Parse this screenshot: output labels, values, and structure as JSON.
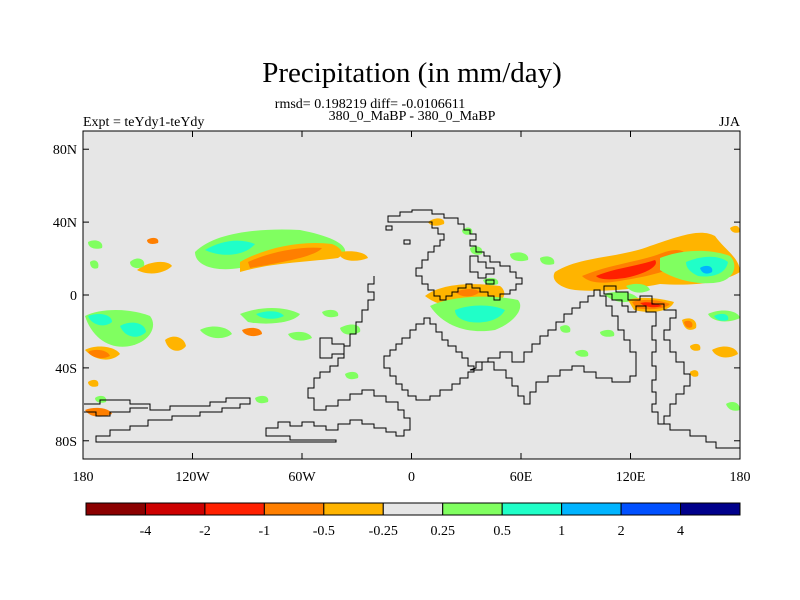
{
  "title": "Precipitation (in mm/day)",
  "stats_line": "rmsd= 0.198219 diff= -0.0106611",
  "case_line": "380_0_MaBP - 380_0_MaBP",
  "left_label": "Expt = teYdy1-teYdy",
  "right_label": "JJA",
  "map": {
    "lon_range": [
      -180,
      180
    ],
    "lat_range": [
      -90,
      90
    ],
    "background_color": "#e6e6e6",
    "coastline_color": "#000000"
  },
  "x_ticks": [
    {
      "value": -180,
      "label": "180"
    },
    {
      "value": -120,
      "label": "120W"
    },
    {
      "value": -60,
      "label": "60W"
    },
    {
      "value": 0,
      "label": "0"
    },
    {
      "value": 60,
      "label": "60E"
    },
    {
      "value": 120,
      "label": "120E"
    },
    {
      "value": 180,
      "label": "180"
    }
  ],
  "y_ticks": [
    {
      "value": 80,
      "label": "80N"
    },
    {
      "value": 40,
      "label": "40N"
    },
    {
      "value": 0,
      "label": "0"
    },
    {
      "value": -40,
      "label": "40S"
    },
    {
      "value": -80,
      "label": "80S"
    }
  ],
  "colorbar": {
    "colors": [
      "#8b0000",
      "#cd0000",
      "#ff2000",
      "#ff7f00",
      "#ffb400",
      "#e6e6e6",
      "#80ff60",
      "#20ffc8",
      "#00b4ff",
      "#0050ff",
      "#00008b"
    ],
    "labels": [
      "-4",
      "-2",
      "-1",
      "-0.5",
      "-0.25",
      "0.25",
      "0.5",
      "1",
      "2",
      "4"
    ]
  }
}
